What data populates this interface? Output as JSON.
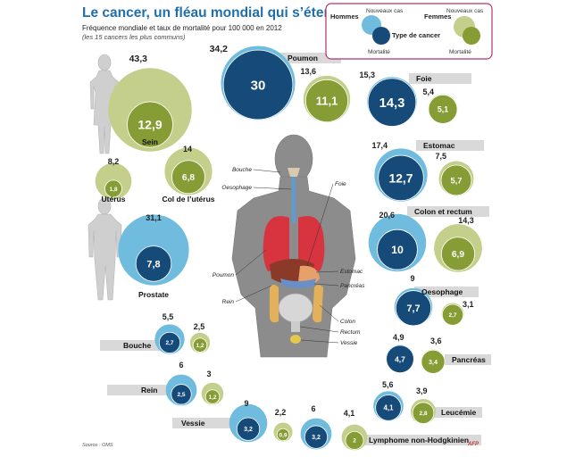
{
  "title": "Le cancer, un fléau mondial qui s’étend",
  "subtitle": "Fréquence mondiale et taux de mortalité pour 100 000 en 2012",
  "note": "(les 15 cancers les plus communs)",
  "source": "Source : OMS",
  "logo": "AFP",
  "colors": {
    "men_new": "#6fbcdf",
    "men_death": "#164a78",
    "women_new": "#c3cf8a",
    "women_death": "#869c34",
    "label_band": "#d9d9d9",
    "body": "#8c8c8c",
    "legend_border": "#b0336b"
  },
  "legend": {
    "men": "Hommes",
    "women": "Femmes",
    "new_cases": "Nouveaux cas",
    "mortality": "Mortalité",
    "cancer_type": "Type de cancer"
  },
  "anatomy": {
    "labels": [
      "Bouche",
      "Oesophage",
      "Foie",
      "Poumon",
      "Estomac",
      "Pancréas",
      "Rein",
      "Colon",
      "Rectum",
      "Vessie"
    ]
  },
  "chart_data": {
    "type": "bubble",
    "unit": "pour 100 000",
    "series": [
      {
        "name": "Nouveaux cas",
        "role": "new_cases"
      },
      {
        "name": "Mortalité",
        "role": "mortality"
      }
    ],
    "cancers": [
      {
        "name": "Sein",
        "sex": "women",
        "new_cases": 43.3,
        "mortality": 12.9
      },
      {
        "name": "Utérus",
        "sex": "women",
        "new_cases": 8.2,
        "mortality": 1.8
      },
      {
        "name": "Col de l’utérus",
        "sex": "women",
        "new_cases": 14,
        "mortality": 6.8
      },
      {
        "name": "Prostate",
        "sex": "men",
        "new_cases": 31.1,
        "mortality": 7.8
      },
      {
        "name": "Poumon",
        "sex": "men",
        "new_cases": 34.2,
        "mortality": 30
      },
      {
        "name": "Poumon",
        "sex": "women",
        "new_cases": 13.6,
        "mortality": 11.1
      },
      {
        "name": "Foie",
        "sex": "men",
        "new_cases": 15.3,
        "mortality": 14.3
      },
      {
        "name": "Foie",
        "sex": "women",
        "new_cases": 5.4,
        "mortality": 5.1
      },
      {
        "name": "Estomac",
        "sex": "men",
        "new_cases": 17.4,
        "mortality": 12.7
      },
      {
        "name": "Estomac",
        "sex": "women",
        "new_cases": 7.5,
        "mortality": 5.7
      },
      {
        "name": "Colon et rectum",
        "sex": "men",
        "new_cases": 20.6,
        "mortality": 10
      },
      {
        "name": "Colon et rectum",
        "sex": "women",
        "new_cases": 14.3,
        "mortality": 6.9
      },
      {
        "name": "Oesophage",
        "sex": "men",
        "new_cases": 9,
        "mortality": 7.7
      },
      {
        "name": "Oesophage",
        "sex": "women",
        "new_cases": 3.1,
        "mortality": 2.7
      },
      {
        "name": "Pancréas",
        "sex": "men",
        "new_cases": 4.9,
        "mortality": 4.7
      },
      {
        "name": "Pancréas",
        "sex": "women",
        "new_cases": 3.6,
        "mortality": 3.4
      },
      {
        "name": "Leucémie",
        "sex": "men",
        "new_cases": 5.6,
        "mortality": 4.1
      },
      {
        "name": "Leucémie",
        "sex": "women",
        "new_cases": 3.9,
        "mortality": 2.8
      },
      {
        "name": "Lymphome non-Hodgkinien",
        "sex": "men",
        "new_cases": 6,
        "mortality": 3.2
      },
      {
        "name": "Lymphome non-Hodgkinien",
        "sex": "women",
        "new_cases": 4.1,
        "mortality": 2
      },
      {
        "name": "Vessie",
        "sex": "men",
        "new_cases": 9,
        "mortality": 3.2
      },
      {
        "name": "Vessie",
        "sex": "women",
        "new_cases": 2.2,
        "mortality": 0.9
      },
      {
        "name": "Rein",
        "sex": "men",
        "new_cases": 6,
        "mortality": 2.5
      },
      {
        "name": "Rein",
        "sex": "women",
        "new_cases": 3,
        "mortality": 1.2
      },
      {
        "name": "Bouche",
        "sex": "men",
        "new_cases": 5.5,
        "mortality": 2.7
      },
      {
        "name": "Bouche",
        "sex": "women",
        "new_cases": 2.5,
        "mortality": 1.2
      }
    ]
  }
}
